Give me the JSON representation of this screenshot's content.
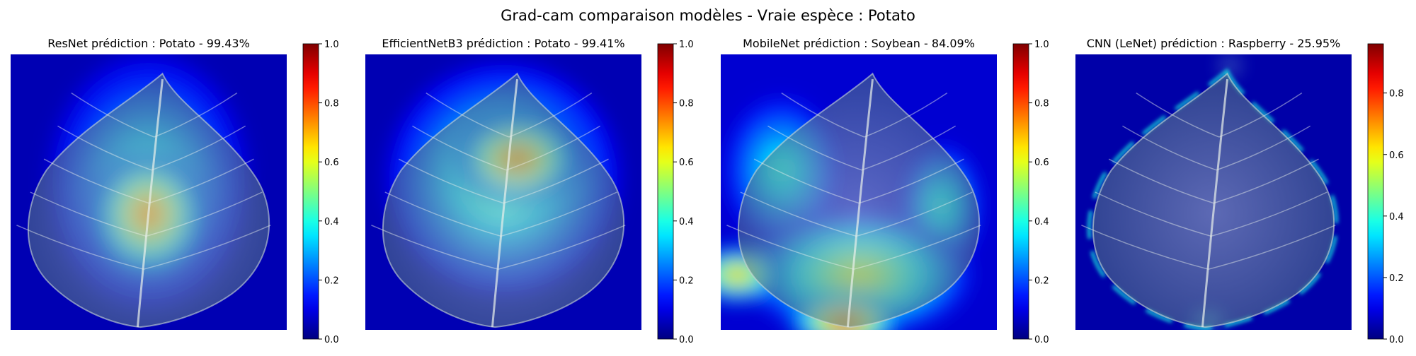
{
  "figure": {
    "suptitle": "Grad-cam comparaison modèles - Vraie espèce : Potato"
  },
  "chart_data": [
    {
      "type": "heatmap",
      "model": "ResNet",
      "title": "ResNet prédiction : Potato - 99.43%",
      "predicted_class": "Potato",
      "confidence_pct": 99.43,
      "colormap": "jet",
      "colorbar": {
        "vmin": 0.0,
        "vmax": 1.0,
        "ticks": [
          0.0,
          0.2,
          0.4,
          0.6,
          0.8,
          1.0
        ],
        "tick_labels": [
          "0.0",
          "0.2",
          "0.4",
          "0.6",
          "0.8",
          "1.0"
        ]
      },
      "hotspots": [
        {
          "cx": 0.5,
          "cy": 0.58,
          "rx": 0.2,
          "ry": 0.22,
          "v": 0.92
        },
        {
          "cx": 0.5,
          "cy": 0.46,
          "rx": 0.36,
          "ry": 0.46,
          "v": 0.45
        }
      ],
      "background_level": 0.05
    },
    {
      "type": "heatmap",
      "model": "EfficientNetB3",
      "title": "EfficientNetB3 prédiction : Potato - 99.41%",
      "predicted_class": "Potato",
      "confidence_pct": 99.41,
      "colormap": "jet",
      "colorbar": {
        "vmin": 0.0,
        "vmax": 1.0,
        "ticks": [
          0.0,
          0.2,
          0.4,
          0.6,
          0.8,
          1.0
        ],
        "tick_labels": [
          "0.0",
          "0.2",
          "0.4",
          "0.6",
          "0.8",
          "1.0"
        ]
      },
      "hotspots": [
        {
          "cx": 0.55,
          "cy": 0.38,
          "rx": 0.22,
          "ry": 0.16,
          "v": 0.93
        },
        {
          "cx": 0.5,
          "cy": 0.45,
          "rx": 0.42,
          "ry": 0.42,
          "v": 0.55
        }
      ],
      "background_level": 0.05
    },
    {
      "type": "heatmap",
      "model": "MobileNet",
      "title": "MobileNet prédiction : Soybean - 84.09%",
      "predicted_class": "Soybean",
      "confidence_pct": 84.09,
      "colormap": "jet",
      "colorbar": {
        "vmin": 0.0,
        "vmax": 1.0,
        "ticks": [
          0.0,
          0.2,
          0.4,
          0.6,
          0.8,
          1.0
        ],
        "tick_labels": [
          "0.0",
          "0.2",
          "0.4",
          "0.6",
          "0.8",
          "1.0"
        ]
      },
      "hotspots": [
        {
          "cx": 0.45,
          "cy": 0.97,
          "rx": 0.2,
          "ry": 0.1,
          "v": 0.98
        },
        {
          "cx": 0.06,
          "cy": 0.8,
          "rx": 0.16,
          "ry": 0.1,
          "v": 0.82
        },
        {
          "cx": 0.5,
          "cy": 0.8,
          "rx": 0.4,
          "ry": 0.22,
          "v": 0.68
        },
        {
          "cx": 0.22,
          "cy": 0.42,
          "rx": 0.2,
          "ry": 0.26,
          "v": 0.45
        },
        {
          "cx": 0.8,
          "cy": 0.55,
          "rx": 0.14,
          "ry": 0.22,
          "v": 0.45
        }
      ],
      "background_level": 0.08
    },
    {
      "type": "heatmap",
      "model": "CNN (LeNet)",
      "title": "CNN (LeNet) prédiction : Raspberry - 25.95%",
      "predicted_class": "Raspberry",
      "confidence_pct": 25.95,
      "colormap": "jet",
      "colorbar": {
        "vmin": 0.0,
        "vmax": 0.96,
        "ticks": [
          0.0,
          0.2,
          0.4,
          0.6,
          0.8
        ],
        "tick_labels": [
          "0.0",
          "0.2",
          "0.4",
          "0.6",
          "0.8"
        ]
      },
      "hotspots": [
        {
          "cx": 0.56,
          "cy": 0.04,
          "rx": 0.03,
          "ry": 0.02,
          "v": 0.95
        },
        {
          "cx": 0.48,
          "cy": 0.97,
          "rx": 0.06,
          "ry": 0.02,
          "v": 0.7
        }
      ],
      "background_level": 0.04,
      "edge_response": true
    }
  ]
}
